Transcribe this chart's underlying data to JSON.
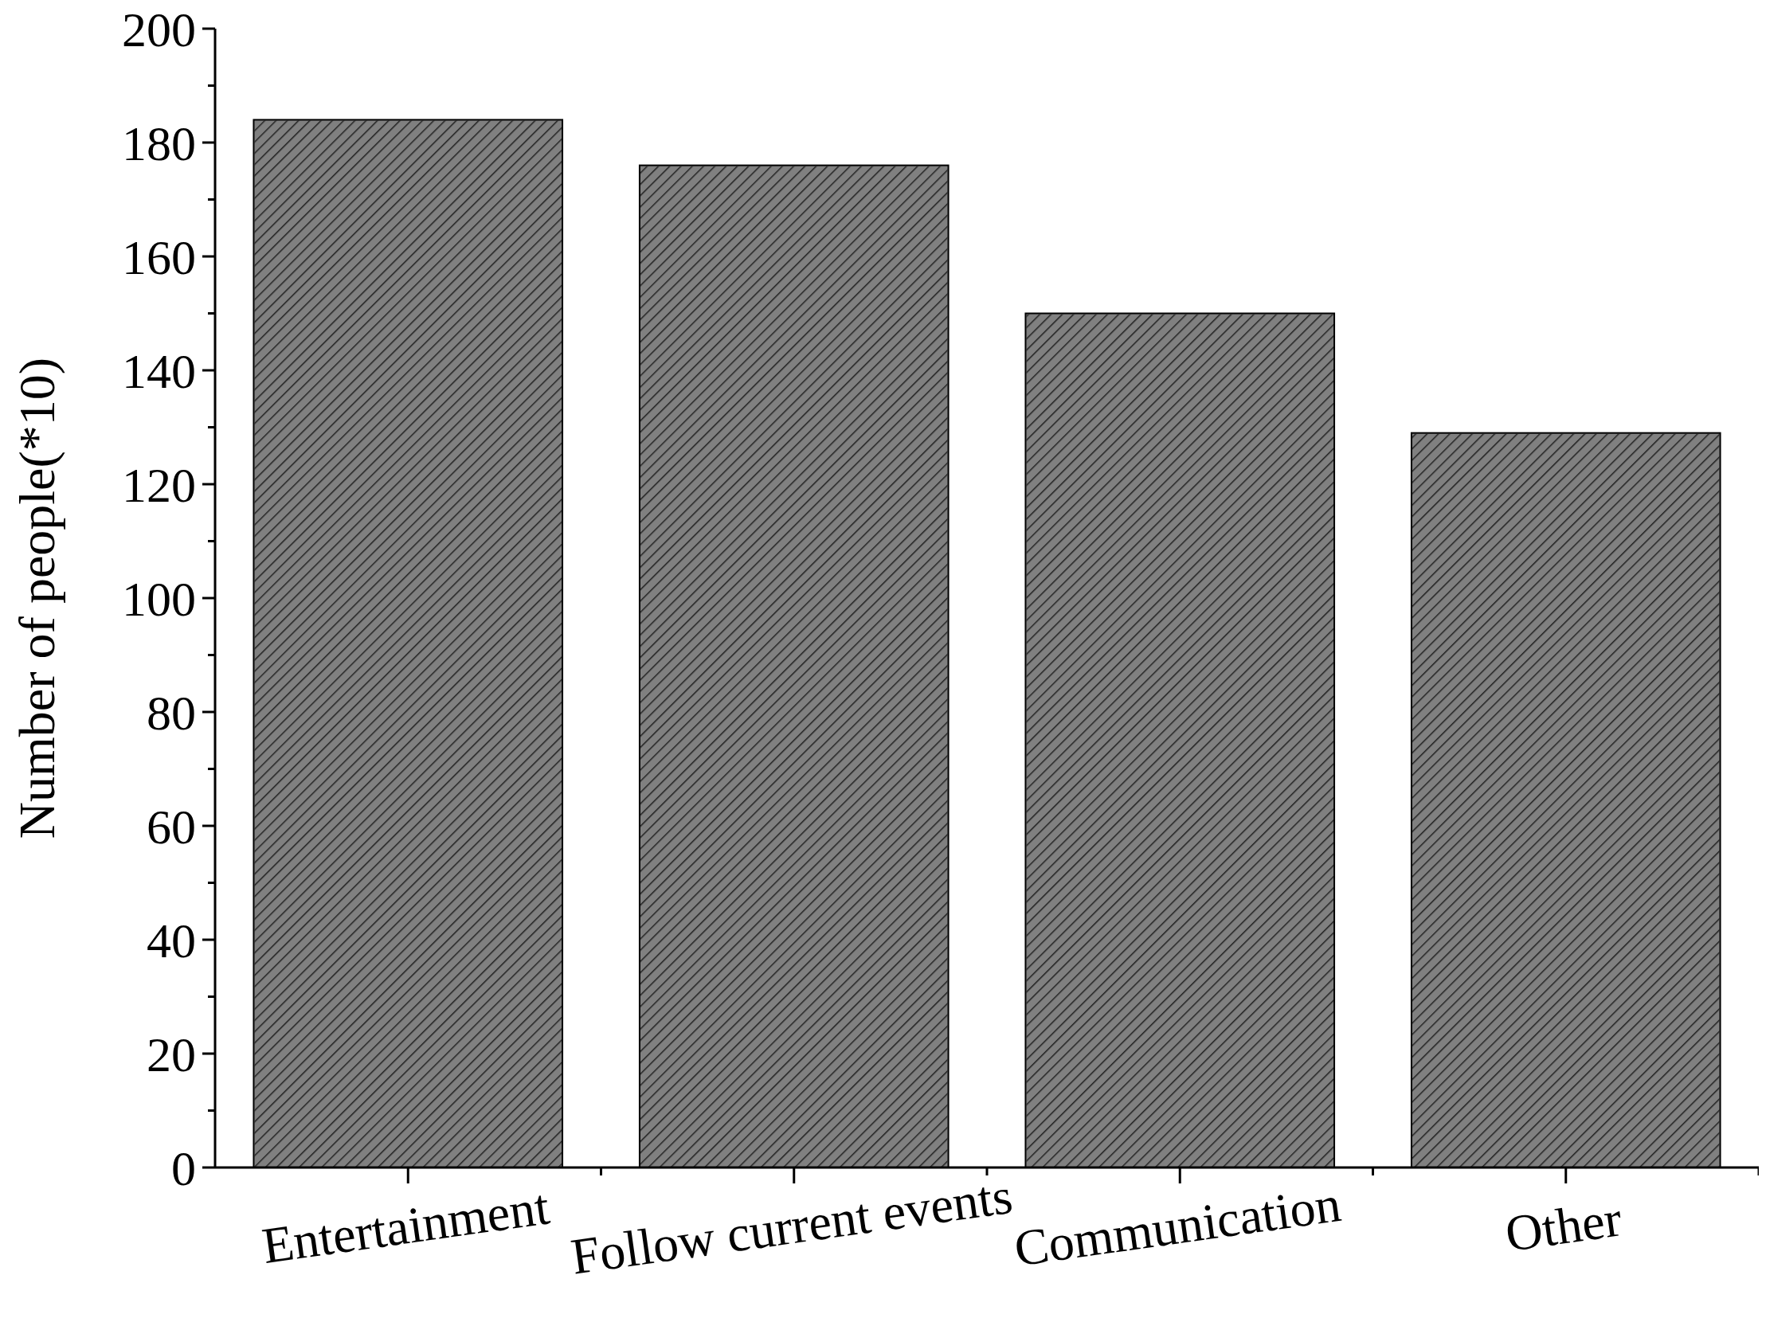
{
  "chart_data": {
    "type": "bar",
    "ylabel": "Number of people(*10)",
    "categories": [
      "Entertainment",
      "Follow current events",
      "Communication",
      "Other"
    ],
    "values": [
      184,
      176,
      150,
      129
    ],
    "color": "#808080",
    "ylim": [
      0,
      200
    ],
    "yticks": [
      0,
      20,
      40,
      60,
      80,
      100,
      120,
      140,
      160,
      180,
      200
    ],
    "grid": false
  }
}
